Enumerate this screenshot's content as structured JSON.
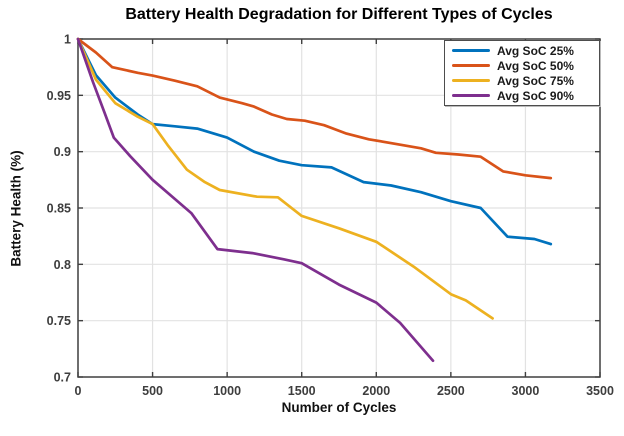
{
  "figure": {
    "title": "Battery Health Degradation for Different Types of Cycles",
    "xlabel": "Number of Cycles",
    "ylabel": "Battery Health (%)"
  },
  "chart_data": {
    "type": "line",
    "title": "Battery Health Degradation for Different Types of Cycles",
    "xlabel": "Number of Cycles",
    "ylabel": "Battery Health (%)",
    "xlim": [
      0,
      3500
    ],
    "ylim": [
      0.7,
      1.0
    ],
    "xtick_values": [
      0,
      500,
      1000,
      1500,
      2000,
      2500,
      3000,
      3500
    ],
    "xtick_labels": [
      "0",
      "500",
      "1000",
      "1500",
      "2000",
      "2500",
      "3000",
      "3500"
    ],
    "ytick_values": [
      0.7,
      0.75,
      0.8,
      0.85,
      0.9,
      0.95,
      1.0
    ],
    "ytick_labels": [
      "0.7",
      "0.75",
      "0.8",
      "0.85",
      "0.9",
      "0.95",
      "1"
    ],
    "grid": true,
    "legend_position": "top-right",
    "axis_color": "#3f3f3f",
    "grid_color": "#e2e2e2",
    "tick_label_color": "#3d3d3d",
    "background": "#ffffff",
    "series": [
      {
        "name": "Avg SoC 25%",
        "color": "#0072BD",
        "points": [
          [
            0,
            1.0
          ],
          [
            120,
            0.968
          ],
          [
            250,
            0.948
          ],
          [
            400,
            0.933
          ],
          [
            500,
            0.9245
          ],
          [
            650,
            0.9225
          ],
          [
            800,
            0.9205
          ],
          [
            1000,
            0.9125
          ],
          [
            1180,
            0.9
          ],
          [
            1350,
            0.892
          ],
          [
            1500,
            0.888
          ],
          [
            1700,
            0.886
          ],
          [
            1915,
            0.873
          ],
          [
            2100,
            0.87
          ],
          [
            2300,
            0.864
          ],
          [
            2500,
            0.856
          ],
          [
            2700,
            0.85
          ],
          [
            2880,
            0.8245
          ],
          [
            3060,
            0.8225
          ],
          [
            3170,
            0.818
          ]
        ]
      },
      {
        "name": "Avg SoC 50%",
        "color": "#D95319",
        "points": [
          [
            0,
            1.0
          ],
          [
            120,
            0.988
          ],
          [
            230,
            0.975
          ],
          [
            400,
            0.97
          ],
          [
            500,
            0.9675
          ],
          [
            650,
            0.963
          ],
          [
            800,
            0.958
          ],
          [
            950,
            0.948
          ],
          [
            1100,
            0.943
          ],
          [
            1180,
            0.94
          ],
          [
            1300,
            0.933
          ],
          [
            1400,
            0.929
          ],
          [
            1520,
            0.9275
          ],
          [
            1650,
            0.9235
          ],
          [
            1800,
            0.916
          ],
          [
            1950,
            0.911
          ],
          [
            2170,
            0.906
          ],
          [
            2300,
            0.903
          ],
          [
            2400,
            0.899
          ],
          [
            2550,
            0.8975
          ],
          [
            2700,
            0.8955
          ],
          [
            2850,
            0.8825
          ],
          [
            3000,
            0.879
          ],
          [
            3170,
            0.8765
          ]
        ]
      },
      {
        "name": "Avg SoC 75%",
        "color": "#EDB120",
        "points": [
          [
            0,
            1.0
          ],
          [
            120,
            0.964
          ],
          [
            250,
            0.943
          ],
          [
            400,
            0.931
          ],
          [
            500,
            0.9245
          ],
          [
            600,
            0.906
          ],
          [
            730,
            0.884
          ],
          [
            850,
            0.873
          ],
          [
            950,
            0.866
          ],
          [
            1200,
            0.86
          ],
          [
            1340,
            0.8595
          ],
          [
            1500,
            0.843
          ],
          [
            1750,
            0.832
          ],
          [
            2000,
            0.82
          ],
          [
            2250,
            0.798
          ],
          [
            2500,
            0.7735
          ],
          [
            2600,
            0.768
          ],
          [
            2780,
            0.752
          ]
        ]
      },
      {
        "name": "Avg SoC 90%",
        "color": "#7E2F8E",
        "points": [
          [
            0,
            1.0
          ],
          [
            100,
            0.962
          ],
          [
            180,
            0.934
          ],
          [
            240,
            0.9125
          ],
          [
            350,
            0.896
          ],
          [
            500,
            0.875
          ],
          [
            650,
            0.858
          ],
          [
            760,
            0.8455
          ],
          [
            935,
            0.8135
          ],
          [
            1170,
            0.81
          ],
          [
            1380,
            0.8045
          ],
          [
            1500,
            0.801
          ],
          [
            1750,
            0.782
          ],
          [
            2000,
            0.766
          ],
          [
            2160,
            0.748
          ],
          [
            2380,
            0.7145
          ]
        ]
      }
    ]
  }
}
